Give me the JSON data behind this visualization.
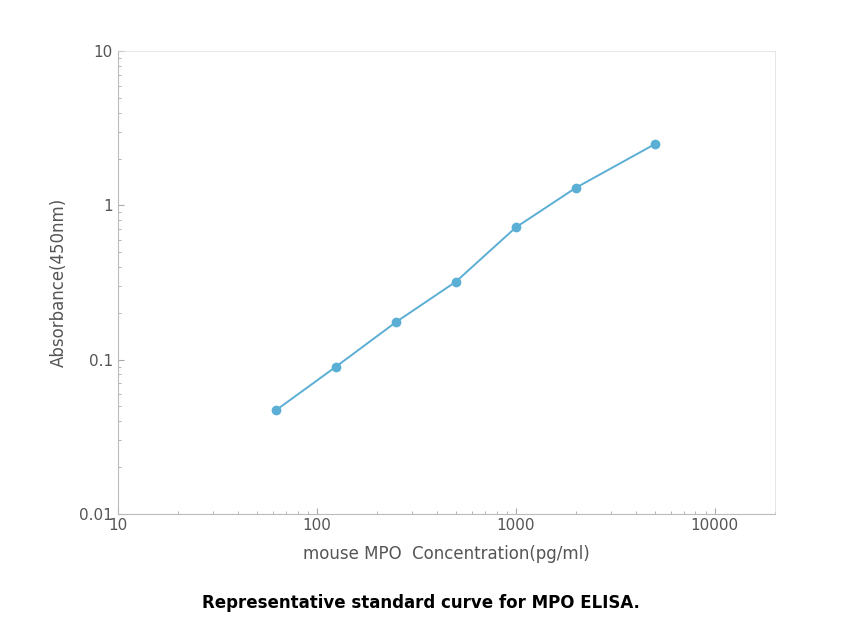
{
  "x_values": [
    62.5,
    125,
    250,
    500,
    1000,
    2000,
    5000
  ],
  "y_values": [
    0.047,
    0.09,
    0.175,
    0.32,
    0.72,
    1.3,
    2.5
  ],
  "line_color": "#5baed4",
  "marker_color": "#5baed4",
  "marker_size": 6,
  "line_width": 1.4,
  "xlabel": "mouse MPO  Concentration(pg/ml)",
  "ylabel": "Absorbance(450nm)",
  "xlim": [
    10,
    20000
  ],
  "ylim": [
    0.01,
    10
  ],
  "xlabel_fontsize": 12,
  "ylabel_fontsize": 12,
  "tick_fontsize": 11,
  "caption": "Representative standard curve for MPO ELISA.",
  "caption_fontsize": 12,
  "background_color": "#ffffff",
  "plot_bg_color": "#ffffff",
  "spine_color": "#bbbbbb",
  "tick_color": "#aaaaaa",
  "label_color": "#555555"
}
